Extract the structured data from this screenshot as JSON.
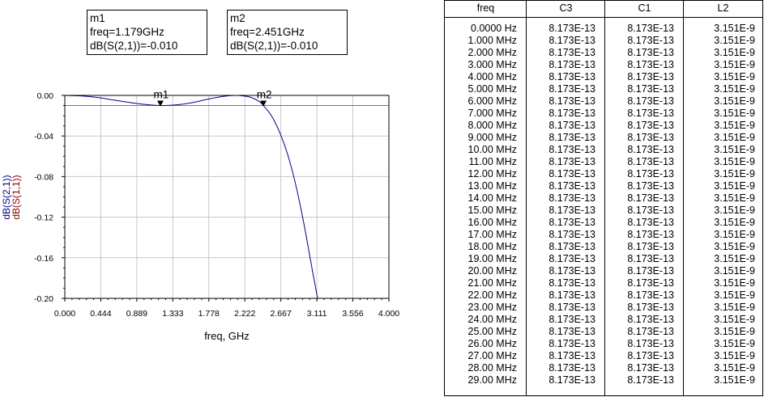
{
  "markers": [
    {
      "name": "m1",
      "freq_text": "freq=1.179GHz",
      "value_text": "dB(S(2,1))=-0.010",
      "freq": 1.179,
      "value": -0.01
    },
    {
      "name": "m2",
      "freq_text": "freq=2.451GHz",
      "value_text": "dB(S(2,1))=-0.010",
      "freq": 2.451,
      "value": -0.01
    }
  ],
  "chart_data": {
    "type": "line",
    "xlabel": "freq, GHz",
    "ylabel": "dB(S(2,1))",
    "ylabel2": "dB(S(1,1))",
    "xlim": [
      0.0,
      4.0
    ],
    "ylim": [
      -0.2,
      0.0
    ],
    "xticks": [
      "0.000",
      "0.444",
      "0.889",
      "1.333",
      "1.778",
      "2.222",
      "2.667",
      "3.111",
      "3.556",
      "4.000"
    ],
    "yticks": [
      "0.00",
      "-0.04",
      "-0.08",
      "-0.12",
      "-0.16",
      "-0.20"
    ],
    "grid": true,
    "colors": {
      "s21": "#00008B",
      "s11": "#8B0000",
      "axis_text": "#000000"
    },
    "series": [
      {
        "name": "dB(S(2,1))",
        "x": [
          0.0,
          0.2,
          0.4,
          0.6,
          0.8,
          1.0,
          1.179,
          1.35,
          1.55,
          1.75,
          1.95,
          2.1,
          2.2,
          2.3,
          2.4,
          2.451,
          2.55,
          2.65,
          2.75,
          2.85,
          2.95,
          3.05,
          3.12
        ],
        "y": [
          0.0,
          -0.0005,
          -0.002,
          -0.0045,
          -0.007,
          -0.009,
          -0.01,
          -0.0095,
          -0.0075,
          -0.004,
          -0.001,
          0.0,
          -0.0005,
          -0.002,
          -0.006,
          -0.01,
          -0.02,
          -0.036,
          -0.058,
          -0.088,
          -0.126,
          -0.17,
          -0.2
        ]
      },
      {
        "name": "dB(S(1,1))",
        "x": [
          0.0,
          4.0
        ],
        "y": [
          -0.01,
          -0.01
        ]
      }
    ]
  },
  "table": {
    "headers": [
      "freq",
      "C3",
      "C1",
      "L2"
    ],
    "rows": [
      [
        "0.0000 Hz",
        "8.173E-13",
        "8.173E-13",
        "3.151E-9"
      ],
      [
        "1.000 MHz",
        "8.173E-13",
        "8.173E-13",
        "3.151E-9"
      ],
      [
        "2.000 MHz",
        "8.173E-13",
        "8.173E-13",
        "3.151E-9"
      ],
      [
        "3.000 MHz",
        "8.173E-13",
        "8.173E-13",
        "3.151E-9"
      ],
      [
        "4.000 MHz",
        "8.173E-13",
        "8.173E-13",
        "3.151E-9"
      ],
      [
        "5.000 MHz",
        "8.173E-13",
        "8.173E-13",
        "3.151E-9"
      ],
      [
        "6.000 MHz",
        "8.173E-13",
        "8.173E-13",
        "3.151E-9"
      ],
      [
        "7.000 MHz",
        "8.173E-13",
        "8.173E-13",
        "3.151E-9"
      ],
      [
        "8.000 MHz",
        "8.173E-13",
        "8.173E-13",
        "3.151E-9"
      ],
      [
        "9.000 MHz",
        "8.173E-13",
        "8.173E-13",
        "3.151E-9"
      ],
      [
        "10.00 MHz",
        "8.173E-13",
        "8.173E-13",
        "3.151E-9"
      ],
      [
        "11.00 MHz",
        "8.173E-13",
        "8.173E-13",
        "3.151E-9"
      ],
      [
        "12.00 MHz",
        "8.173E-13",
        "8.173E-13",
        "3.151E-9"
      ],
      [
        "13.00 MHz",
        "8.173E-13",
        "8.173E-13",
        "3.151E-9"
      ],
      [
        "14.00 MHz",
        "8.173E-13",
        "8.173E-13",
        "3.151E-9"
      ],
      [
        "15.00 MHz",
        "8.173E-13",
        "8.173E-13",
        "3.151E-9"
      ],
      [
        "16.00 MHz",
        "8.173E-13",
        "8.173E-13",
        "3.151E-9"
      ],
      [
        "17.00 MHz",
        "8.173E-13",
        "8.173E-13",
        "3.151E-9"
      ],
      [
        "18.00 MHz",
        "8.173E-13",
        "8.173E-13",
        "3.151E-9"
      ],
      [
        "19.00 MHz",
        "8.173E-13",
        "8.173E-13",
        "3.151E-9"
      ],
      [
        "20.00 MHz",
        "8.173E-13",
        "8.173E-13",
        "3.151E-9"
      ],
      [
        "21.00 MHz",
        "8.173E-13",
        "8.173E-13",
        "3.151E-9"
      ],
      [
        "22.00 MHz",
        "8.173E-13",
        "8.173E-13",
        "3.151E-9"
      ],
      [
        "23.00 MHz",
        "8.173E-13",
        "8.173E-13",
        "3.151E-9"
      ],
      [
        "24.00 MHz",
        "8.173E-13",
        "8.173E-13",
        "3.151E-9"
      ],
      [
        "25.00 MHz",
        "8.173E-13",
        "8.173E-13",
        "3.151E-9"
      ],
      [
        "26.00 MHz",
        "8.173E-13",
        "8.173E-13",
        "3.151E-9"
      ],
      [
        "27.00 MHz",
        "8.173E-13",
        "8.173E-13",
        "3.151E-9"
      ],
      [
        "28.00 MHz",
        "8.173E-13",
        "8.173E-13",
        "3.151E-9"
      ],
      [
        "29.00 MHz",
        "8.173E-13",
        "8.173E-13",
        "3.151E-9"
      ]
    ]
  }
}
